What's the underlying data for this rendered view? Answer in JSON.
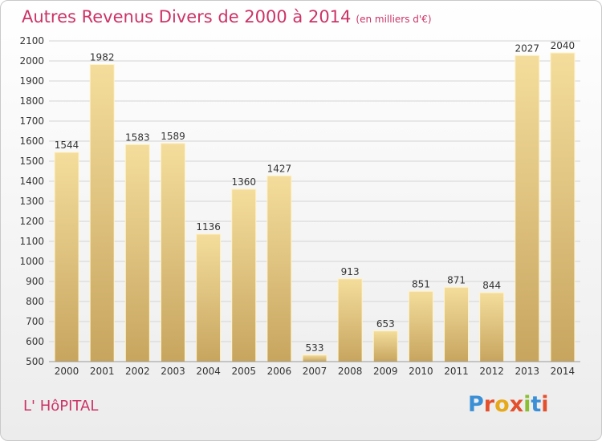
{
  "header": {
    "title": "Autres Revenus Divers de 2000 à 2014",
    "subtitle": "(en milliers d'€)"
  },
  "footer": {
    "commune": "L' HôPITAL",
    "logo": "Proxiti"
  },
  "colors": {
    "title": "#cc3366",
    "bar_light": "#f3dc9a",
    "bar_dark": "#c9a862",
    "grid": "#d7d7d7"
  },
  "chart_data": {
    "type": "bar",
    "title": "Autres Revenus Divers de 2000 à 2014",
    "subtitle": "(en milliers d'€)",
    "categories": [
      "2000",
      "2001",
      "2002",
      "2003",
      "2004",
      "2005",
      "2006",
      "2007",
      "2008",
      "2009",
      "2010",
      "2011",
      "2012",
      "2013",
      "2014"
    ],
    "values": [
      1544,
      1982,
      1583,
      1589,
      1136,
      1360,
      1427,
      533,
      913,
      653,
      851,
      871,
      844,
      2027,
      2040
    ],
    "ylim": [
      500,
      2100
    ],
    "yticks": [
      500,
      600,
      700,
      800,
      900,
      1000,
      1100,
      1200,
      1300,
      1400,
      1500,
      1600,
      1700,
      1800,
      1900,
      2000,
      2100
    ],
    "grid": true,
    "data_labels": true,
    "xlabel": "",
    "ylabel": ""
  }
}
